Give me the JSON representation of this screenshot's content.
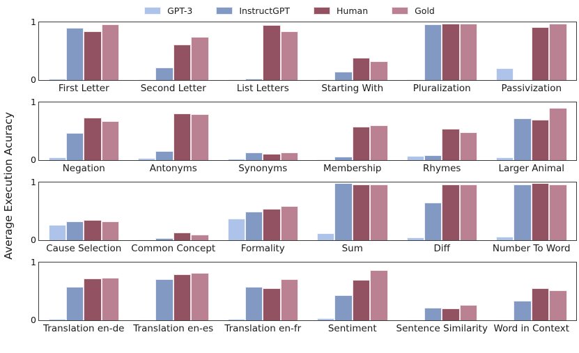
{
  "legend": {
    "entries": [
      {
        "label": "GPT-3",
        "color": "#aec3ea"
      },
      {
        "label": "InstructGPT",
        "color": "#8299c4"
      },
      {
        "label": "Human",
        "color": "#925262"
      },
      {
        "label": "Gold",
        "color": "#ba8193"
      }
    ]
  },
  "chart_data": {
    "type": "bar",
    "title": "",
    "ylabel": "Average Execution Acuracy",
    "xlabel": "",
    "ylim": [
      0,
      1
    ],
    "yticks": [
      0,
      1
    ],
    "grid": false,
    "legend_position": "top center",
    "series_names": [
      "GPT-3",
      "InstructGPT",
      "Human",
      "Gold"
    ],
    "series_colors": [
      "#aec3ea",
      "#8299c4",
      "#925262",
      "#ba8193"
    ],
    "rows": [
      {
        "categories": [
          "First Letter",
          "Second Letter",
          "List Letters",
          "Starting With",
          "Pluralization",
          "Passivization"
        ],
        "series": [
          {
            "name": "GPT-3",
            "values": [
              0.02,
              0.01,
              0.01,
              0.01,
              0.01,
              0.2
            ]
          },
          {
            "name": "InstructGPT",
            "values": [
              0.9,
              0.22,
              0.03,
              0.14,
              0.96,
              0.01
            ]
          },
          {
            "name": "Human",
            "values": [
              0.84,
              0.62,
              0.95,
              0.38,
              0.98,
              0.92
            ]
          },
          {
            "name": "Gold",
            "values": [
              0.97,
              0.75,
              0.84,
              0.33,
              0.98,
              0.98
            ]
          }
        ]
      },
      {
        "categories": [
          "Negation",
          "Antonyms",
          "Synonyms",
          "Membership",
          "Rhymes",
          "Larger Animal"
        ],
        "series": [
          {
            "name": "GPT-3",
            "values": [
              0.05,
              0.04,
              0.02,
              0.01,
              0.07,
              0.05
            ]
          },
          {
            "name": "InstructGPT",
            "values": [
              0.47,
              0.16,
              0.13,
              0.06,
              0.09,
              0.72
            ]
          },
          {
            "name": "Human",
            "values": [
              0.74,
              0.81,
              0.11,
              0.58,
              0.54,
              0.7
            ]
          },
          {
            "name": "Gold",
            "values": [
              0.68,
              0.79,
              0.13,
              0.6,
              0.48,
              0.9
            ]
          }
        ]
      },
      {
        "categories": [
          "Cause Selection",
          "Common Concept",
          "Formality",
          "Sum",
          "Diff",
          "Number To Word"
        ],
        "series": [
          {
            "name": "GPT-3",
            "values": [
              0.26,
              0.01,
              0.37,
              0.12,
              0.05,
              0.06
            ]
          },
          {
            "name": "InstructGPT",
            "values": [
              0.33,
              0.04,
              0.5,
              0.99,
              0.65,
              0.97
            ]
          },
          {
            "name": "Human",
            "values": [
              0.35,
              0.13,
              0.54,
              0.97,
              0.97,
              0.99
            ]
          },
          {
            "name": "Gold",
            "values": [
              0.33,
              0.1,
              0.59,
              0.97,
              0.97,
              0.96
            ]
          }
        ]
      },
      {
        "categories": [
          "Translation en-de",
          "Translation en-es",
          "Translation en-fr",
          "Sentiment",
          "Sentence Similarity",
          "Word in Context"
        ],
        "series": [
          {
            "name": "GPT-3",
            "values": [
              0.02,
              0.01,
              0.03,
              0.04,
              0.01,
              0.01
            ]
          },
          {
            "name": "InstructGPT",
            "values": [
              0.58,
              0.71,
              0.58,
              0.43,
              0.22,
              0.34
            ]
          },
          {
            "name": "Human",
            "values": [
              0.72,
              0.79,
              0.56,
              0.7,
              0.2,
              0.55
            ]
          },
          {
            "name": "Gold",
            "values": [
              0.74,
              0.82,
              0.71,
              0.87,
              0.26,
              0.52
            ]
          }
        ]
      }
    ]
  }
}
